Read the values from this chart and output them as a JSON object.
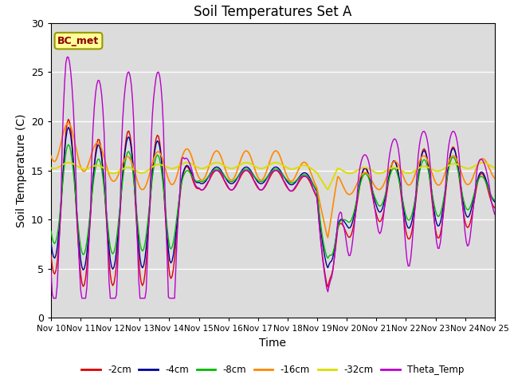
{
  "title": "Soil Temperatures Set A",
  "xlabel": "Time",
  "ylabel": "Soil Temperature (C)",
  "ylim": [
    0,
    30
  ],
  "bg_color": "#dcdcdc",
  "legend_label": "BC_met",
  "series_colors": {
    "-2cm": "#dd0000",
    "-4cm": "#000099",
    "-8cm": "#00bb00",
    "-16cm": "#ff8800",
    "-32cm": "#dddd00",
    "Theta_Temp": "#bb00cc"
  },
  "xtick_labels": [
    "Nov 10",
    "Nov 11",
    "Nov 12",
    "Nov 13",
    "Nov 14",
    "Nov 15",
    "Nov 16",
    "Nov 17",
    "Nov 18",
    "Nov 19",
    "Nov 20",
    "Nov 21",
    "Nov 22",
    "Nov 23",
    "Nov 24",
    "Nov 25"
  ],
  "ytick_labels": [
    0,
    5,
    10,
    15,
    20,
    25,
    30
  ]
}
